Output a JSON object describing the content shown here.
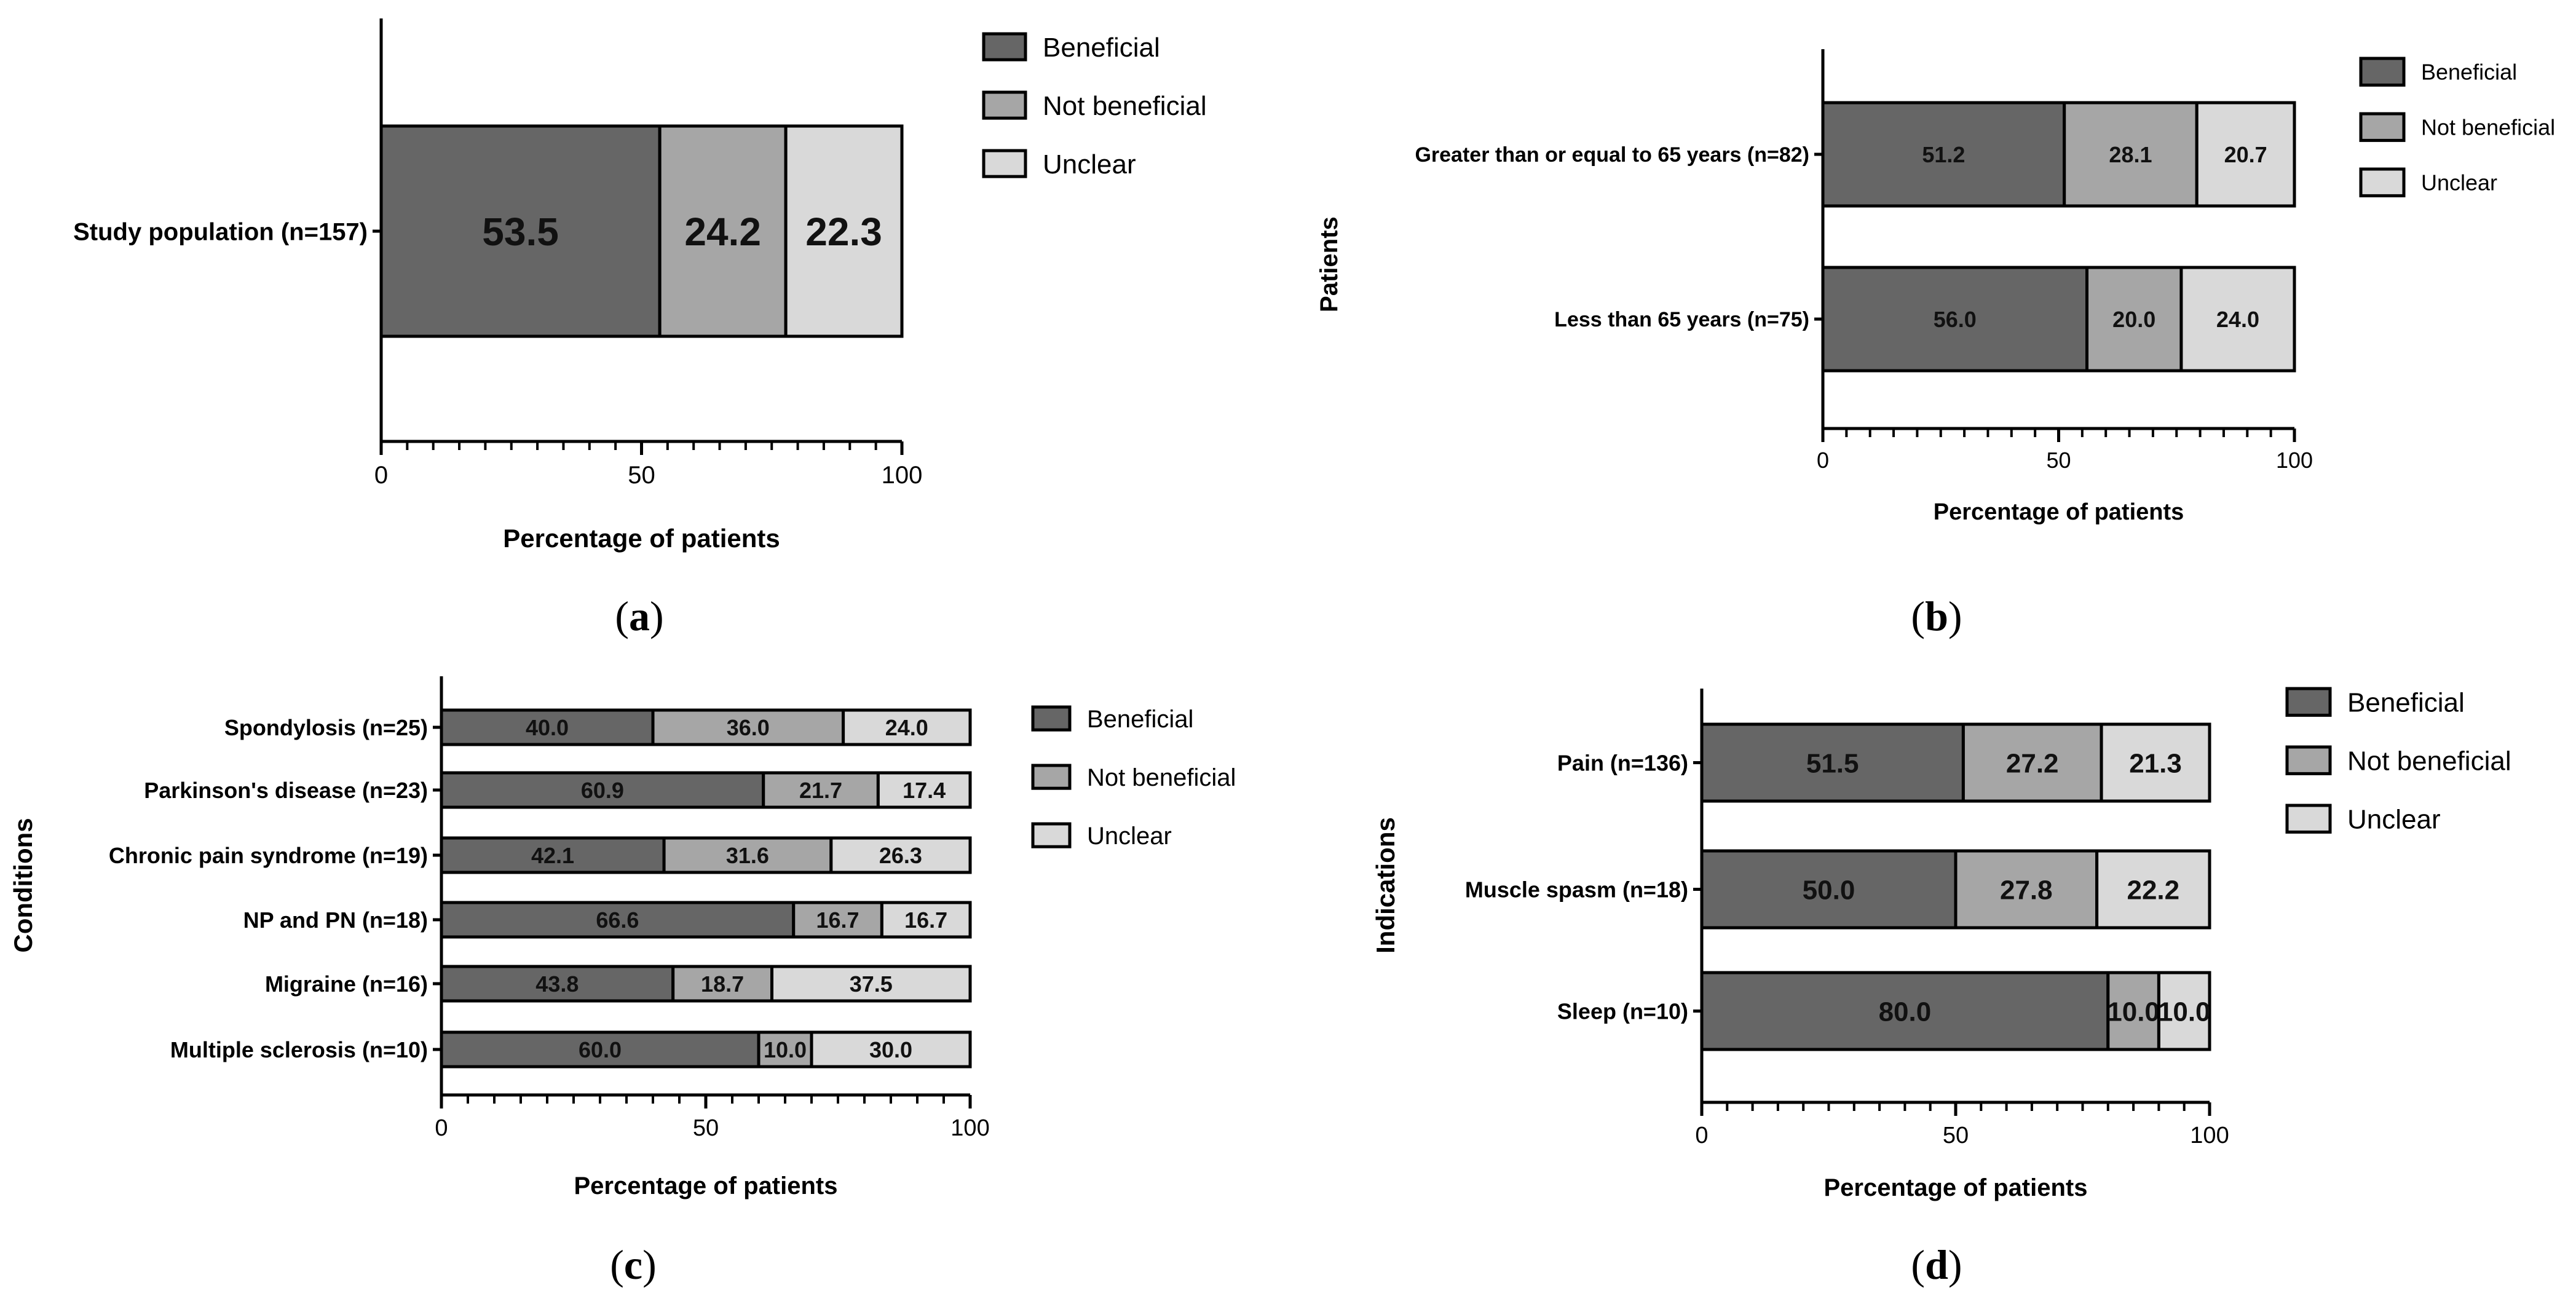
{
  "colors": {
    "beneficial": "#666666",
    "not_beneficial": "#a6a6a6",
    "unclear": "#d9d9d9",
    "stroke": "#000000"
  },
  "chart_data": [
    {
      "panel": "a",
      "type": "bar",
      "orientation": "horizontal",
      "stacked": true,
      "xlabel": "Percentage of patients",
      "ylabel": "",
      "xlim": [
        0,
        100
      ],
      "xticks": [
        "0",
        "50",
        "100"
      ],
      "categories": [
        "Study population (n=157)"
      ],
      "series": [
        {
          "name": "Beneficial",
          "values": [
            53.5
          ],
          "labels": [
            "53.5"
          ]
        },
        {
          "name": "Not beneficial",
          "values": [
            24.2
          ],
          "labels": [
            "24.2"
          ]
        },
        {
          "name": "Unclear",
          "values": [
            22.3
          ],
          "labels": [
            "22.3"
          ]
        }
      ],
      "legend": [
        "Beneficial",
        "Not beneficial",
        "Unclear"
      ],
      "legend_position": "right"
    },
    {
      "panel": "b",
      "type": "bar",
      "orientation": "horizontal",
      "stacked": true,
      "xlabel": "Percentage of patients",
      "ylabel": "Patients",
      "xlim": [
        0,
        100
      ],
      "xticks": [
        "0",
        "50",
        "100"
      ],
      "categories": [
        "Greater than or equal to 65 years (n=82)",
        "Less than 65 years (n=75)"
      ],
      "series": [
        {
          "name": "Beneficial",
          "values": [
            51.2,
            56.0
          ],
          "labels": [
            "51.2",
            "56.0"
          ]
        },
        {
          "name": "Not beneficial",
          "values": [
            28.1,
            20.0
          ],
          "labels": [
            "28.1",
            "20.0"
          ]
        },
        {
          "name": "Unclear",
          "values": [
            20.7,
            24.0
          ],
          "labels": [
            "20.7",
            "24.0"
          ]
        }
      ],
      "legend": [
        "Beneficial",
        "Not beneficial",
        "Unclear"
      ],
      "legend_position": "right"
    },
    {
      "panel": "c",
      "type": "bar",
      "orientation": "horizontal",
      "stacked": true,
      "xlabel": "Percentage of patients",
      "ylabel": "Conditions",
      "xlim": [
        0,
        100
      ],
      "xticks": [
        "0",
        "50",
        "100"
      ],
      "categories": [
        "Spondylosis (n=25)",
        "Parkinson's disease (n=23)",
        "Chronic pain syndrome (n=19)",
        "NP and PN (n=18)",
        "Migraine (n=16)",
        "Multiple sclerosis (n=10)"
      ],
      "series": [
        {
          "name": "Beneficial",
          "values": [
            40.0,
            60.9,
            42.1,
            66.6,
            43.8,
            60.0
          ],
          "labels": [
            "40.0",
            "60.9",
            "42.1",
            "66.6",
            "43.8",
            "60.0"
          ]
        },
        {
          "name": "Not beneficial",
          "values": [
            36.0,
            21.7,
            31.6,
            16.7,
            18.7,
            10.0
          ],
          "labels": [
            "36.0",
            "21.7",
            "31.6",
            "16.7",
            "18.7",
            "10.0"
          ]
        },
        {
          "name": "Unclear",
          "values": [
            24.0,
            17.4,
            26.3,
            16.7,
            37.5,
            30.0
          ],
          "labels": [
            "24.0",
            "17.4",
            "26.3",
            "16.7",
            "37.5",
            "30.0"
          ]
        }
      ],
      "legend": [
        "Beneficial",
        "Not beneficial",
        "Unclear"
      ],
      "legend_position": "right"
    },
    {
      "panel": "d",
      "type": "bar",
      "orientation": "horizontal",
      "stacked": true,
      "xlabel": "Percentage of patients",
      "ylabel": "Indications",
      "xlim": [
        0,
        100
      ],
      "xticks": [
        "0",
        "50",
        "100"
      ],
      "categories": [
        "Pain (n=136)",
        "Muscle spasm (n=18)",
        "Sleep (n=10)"
      ],
      "series": [
        {
          "name": "Beneficial",
          "values": [
            51.5,
            50.0,
            80.0
          ],
          "labels": [
            "51.5",
            "50.0",
            "80.0"
          ]
        },
        {
          "name": "Not beneficial",
          "values": [
            27.2,
            27.8,
            10.0
          ],
          "labels": [
            "27.2",
            "27.8",
            "10.0"
          ]
        },
        {
          "name": "Unclear",
          "values": [
            21.3,
            22.2,
            10.0
          ],
          "labels": [
            "21.3",
            "22.2",
            "10.0"
          ]
        }
      ],
      "legend": [
        "Beneficial",
        "Not beneficial",
        "Unclear"
      ],
      "legend_position": "right"
    }
  ]
}
